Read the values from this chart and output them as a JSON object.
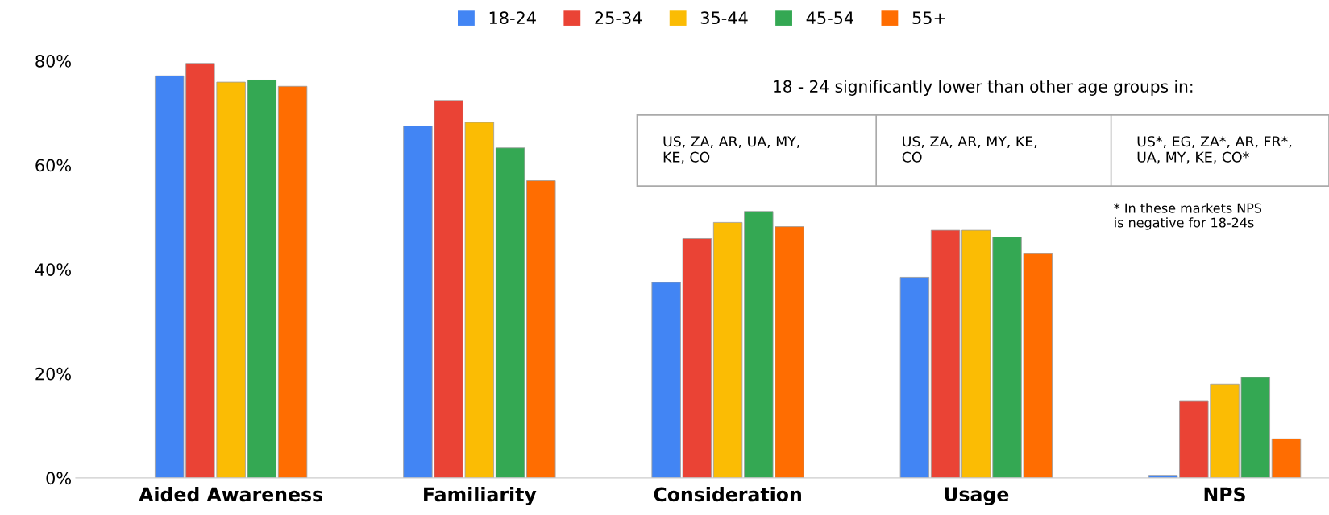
{
  "chart_data": {
    "type": "bar",
    "categories": [
      "Aided Awareness",
      "Familiarity",
      "Consideration",
      "Usage",
      "NPS"
    ],
    "series": [
      {
        "name": "18-24",
        "color": "#4285f4",
        "values": [
          77.1,
          67.5,
          37.5,
          38.5,
          0.5
        ]
      },
      {
        "name": "25-34",
        "color": "#ea4335",
        "values": [
          79.5,
          72.4,
          45.9,
          47.5,
          14.8
        ]
      },
      {
        "name": "35-44",
        "color": "#fbbc04",
        "values": [
          75.9,
          68.2,
          49.0,
          47.5,
          18.0
        ]
      },
      {
        "name": "45-54",
        "color": "#34a853",
        "values": [
          76.3,
          63.3,
          51.1,
          46.2,
          19.3
        ]
      },
      {
        "name": "55+",
        "color": "#ff6d01",
        "values": [
          75.1,
          57.0,
          48.2,
          43.0,
          7.5
        ]
      }
    ],
    "ylim": [
      0,
      80
    ],
    "yticks": [
      {
        "value": 0,
        "label": "0%"
      },
      {
        "value": 20,
        "label": "20%"
      },
      {
        "value": 40,
        "label": "40%"
      },
      {
        "value": 60,
        "label": "60%"
      },
      {
        "value": 80,
        "label": "80%"
      }
    ],
    "grid": false,
    "legend": "top",
    "annotations": [
      "18 - 24 significantly lower than other age groups in:",
      "US, ZA, AR, UA, MY,\nKE, CO",
      "US, ZA, AR, MY, KE,\nCO",
      "US*, EG, ZA*, AR, FR*,\nUA, MY, KE, CO*",
      "* In these markets NPS\nis negative for 18-24s"
    ]
  }
}
